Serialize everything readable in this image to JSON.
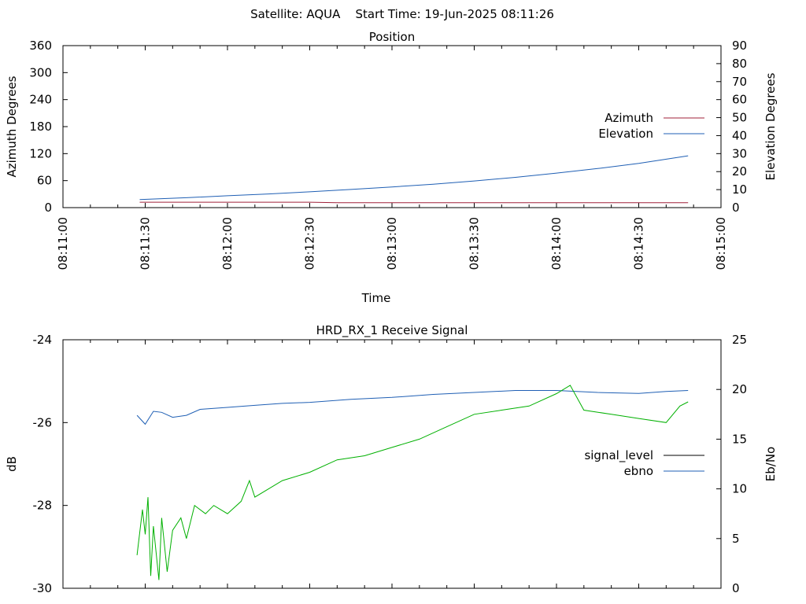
{
  "page_title": "Satellite: AQUA    Start Time: 19-Jun-2025 08:11:26",
  "chart_data": [
    {
      "type": "line",
      "title": "Position",
      "xlabel": "Time",
      "ylabel": "Azimuth Degrees",
      "y2label": "Elevation Degrees",
      "x_ticks": [
        "08:11:00",
        "08:11:30",
        "08:12:00",
        "08:12:30",
        "08:13:00",
        "08:13:30",
        "08:14:00",
        "08:14:30",
        "08:15:00"
      ],
      "x_range": [
        "08:11:00",
        "08:15:00"
      ],
      "ylim": [
        0,
        360
      ],
      "y_ticks": [
        0,
        60,
        120,
        180,
        240,
        300,
        360
      ],
      "y2lim": [
        0,
        90
      ],
      "y2_ticks": [
        0,
        10,
        20,
        30,
        40,
        50,
        60,
        70,
        80,
        90
      ],
      "legend_position": "right",
      "grid": false,
      "series": [
        {
          "name": "Azimuth",
          "axis": "left",
          "color": "#a0203a",
          "points": [
            [
              "08:11:28",
              12
            ],
            [
              "08:12:00",
              12
            ],
            [
              "08:12:30",
              12
            ],
            [
              "08:12:40",
              11
            ],
            [
              "08:13:00",
              11
            ],
            [
              "08:14:00",
              11
            ],
            [
              "08:14:48",
              11
            ]
          ]
        },
        {
          "name": "Elevation",
          "axis": "right",
          "color": "#1f5fb4",
          "points": [
            [
              "08:11:28",
              4.5
            ],
            [
              "08:11:45",
              5.5
            ],
            [
              "08:12:00",
              6.6
            ],
            [
              "08:12:15",
              7.6
            ],
            [
              "08:12:30",
              8.8
            ],
            [
              "08:12:45",
              10.1
            ],
            [
              "08:13:00",
              11.5
            ],
            [
              "08:13:15",
              13.0
            ],
            [
              "08:13:30",
              14.8
            ],
            [
              "08:13:45",
              16.8
            ],
            [
              "08:14:00",
              19.2
            ],
            [
              "08:14:15",
              21.7
            ],
            [
              "08:14:30",
              24.6
            ],
            [
              "08:14:48",
              28.8
            ]
          ]
        }
      ]
    },
    {
      "type": "line",
      "title": "HRD_RX_1 Receive Signal",
      "xlabel": "",
      "ylabel": "dB",
      "y2label": "Eb/No",
      "x_range": [
        "08:11:00",
        "08:15:00"
      ],
      "ylim": [
        -30,
        -24
      ],
      "y_ticks": [
        -30,
        -28,
        -26,
        -24
      ],
      "y2lim": [
        0,
        25
      ],
      "y2_ticks": [
        0,
        5,
        10,
        15,
        20,
        25
      ],
      "legend_position": "right",
      "grid": false,
      "legend": [
        {
          "name": "signal_level",
          "color": "#000000"
        },
        {
          "name": "ebno",
          "color": "#1f5fb4"
        }
      ],
      "series": [
        {
          "name": "ebno",
          "axis": "right",
          "color": "#1f5fb4",
          "points": [
            [
              "08:11:27",
              17.4
            ],
            [
              "08:11:30",
              16.5
            ],
            [
              "08:11:33",
              17.8
            ],
            [
              "08:11:36",
              17.7
            ],
            [
              "08:11:40",
              17.2
            ],
            [
              "08:11:45",
              17.4
            ],
            [
              "08:11:50",
              18.0
            ],
            [
              "08:12:00",
              18.2
            ],
            [
              "08:12:10",
              18.4
            ],
            [
              "08:12:20",
              18.6
            ],
            [
              "08:12:30",
              18.7
            ],
            [
              "08:12:45",
              19.0
            ],
            [
              "08:13:00",
              19.2
            ],
            [
              "08:13:15",
              19.5
            ],
            [
              "08:13:30",
              19.7
            ],
            [
              "08:13:45",
              19.9
            ],
            [
              "08:14:00",
              19.9
            ],
            [
              "08:14:15",
              19.7
            ],
            [
              "08:14:30",
              19.6
            ],
            [
              "08:14:40",
              19.8
            ],
            [
              "08:14:48",
              19.9
            ]
          ]
        },
        {
          "name": "",
          "axis": "left",
          "color": "#00b000",
          "points": [
            [
              "08:11:27",
              -29.2
            ],
            [
              "08:11:29",
              -28.1
            ],
            [
              "08:11:30",
              -28.7
            ],
            [
              "08:11:31",
              -27.8
            ],
            [
              "08:11:32",
              -29.7
            ],
            [
              "08:11:33",
              -28.5
            ],
            [
              "08:11:35",
              -29.8
            ],
            [
              "08:11:36",
              -28.3
            ],
            [
              "08:11:38",
              -29.6
            ],
            [
              "08:11:40",
              -28.6
            ],
            [
              "08:11:43",
              -28.3
            ],
            [
              "08:11:45",
              -28.8
            ],
            [
              "08:11:48",
              -28.0
            ],
            [
              "08:11:52",
              -28.2
            ],
            [
              "08:11:55",
              -28.0
            ],
            [
              "08:12:00",
              -28.2
            ],
            [
              "08:12:05",
              -27.9
            ],
            [
              "08:12:08",
              -27.4
            ],
            [
              "08:12:10",
              -27.8
            ],
            [
              "08:12:15",
              -27.6
            ],
            [
              "08:12:20",
              -27.4
            ],
            [
              "08:12:30",
              -27.2
            ],
            [
              "08:12:40",
              -26.9
            ],
            [
              "08:12:50",
              -26.8
            ],
            [
              "08:13:00",
              -26.6
            ],
            [
              "08:13:10",
              -26.4
            ],
            [
              "08:13:20",
              -26.1
            ],
            [
              "08:13:30",
              -25.8
            ],
            [
              "08:13:40",
              -25.7
            ],
            [
              "08:13:50",
              -25.6
            ],
            [
              "08:14:00",
              -25.3
            ],
            [
              "08:14:05",
              -25.1
            ],
            [
              "08:14:10",
              -25.7
            ],
            [
              "08:14:20",
              -25.8
            ],
            [
              "08:14:30",
              -25.9
            ],
            [
              "08:14:40",
              -26.0
            ],
            [
              "08:14:45",
              -25.6
            ],
            [
              "08:14:48",
              -25.5
            ]
          ]
        }
      ]
    }
  ]
}
